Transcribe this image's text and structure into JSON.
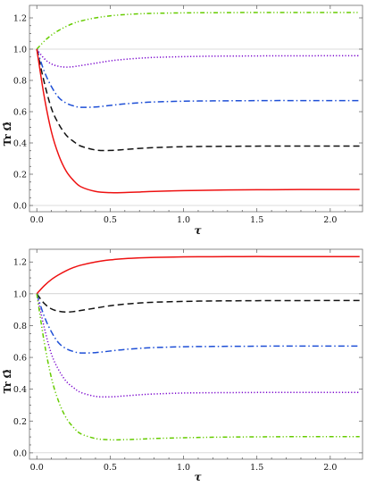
{
  "chart_data": [
    {
      "type": "line",
      "xlabel": "τ",
      "ylabel": "Tr Ω̂",
      "xlim": [
        -0.05,
        2.22
      ],
      "ylim": [
        -0.04,
        1.28
      ],
      "x_ticks": [
        0.0,
        0.5,
        1.0,
        1.5,
        2.0
      ],
      "x_tick_labels": [
        "0.0",
        "0.5",
        "1.0",
        "1.5",
        "2.0"
      ],
      "y_ticks": [
        0.0,
        0.2,
        0.4,
        0.6,
        0.8,
        1.0,
        1.2
      ],
      "y_tick_labels": [
        "0.0",
        "0.2",
        "0.4",
        "0.6",
        "0.8",
        "1.0",
        "1.2"
      ],
      "reference_lines_y": [
        0.0,
        1.0
      ],
      "x": [
        0.0,
        0.05,
        0.1,
        0.15,
        0.2,
        0.25,
        0.3,
        0.4,
        0.5,
        0.6,
        0.7,
        0.8,
        1.0,
        1.2,
        1.4,
        1.6,
        1.8,
        2.0,
        2.2
      ],
      "series": [
        {
          "color": "#66cc00",
          "style": "dash-dot-dot",
          "values": [
            1.0,
            1.05,
            1.09,
            1.12,
            1.145,
            1.165,
            1.18,
            1.2,
            1.213,
            1.221,
            1.226,
            1.229,
            1.232,
            1.233,
            1.234,
            1.234,
            1.234,
            1.234,
            1.234
          ]
        },
        {
          "color": "#7700cc",
          "style": "dotted",
          "values": [
            1.0,
            0.94,
            0.905,
            0.89,
            0.885,
            0.888,
            0.895,
            0.91,
            0.925,
            0.935,
            0.942,
            0.947,
            0.952,
            0.955,
            0.956,
            0.957,
            0.957,
            0.958,
            0.958
          ]
        },
        {
          "color": "#1e4fd6",
          "style": "dash-dot",
          "values": [
            1.0,
            0.86,
            0.76,
            0.69,
            0.655,
            0.637,
            0.628,
            0.63,
            0.64,
            0.65,
            0.657,
            0.662,
            0.667,
            0.669,
            0.67,
            0.671,
            0.671,
            0.671,
            0.671
          ]
        },
        {
          "color": "#111111",
          "style": "dashed",
          "values": [
            1.0,
            0.79,
            0.62,
            0.52,
            0.45,
            0.41,
            0.38,
            0.355,
            0.352,
            0.358,
            0.365,
            0.37,
            0.376,
            0.378,
            0.379,
            0.38,
            0.38,
            0.38,
            0.38
          ]
        },
        {
          "color": "#ee1111",
          "style": "solid",
          "values": [
            1.0,
            0.7,
            0.47,
            0.32,
            0.22,
            0.16,
            0.12,
            0.09,
            0.082,
            0.083,
            0.086,
            0.09,
            0.095,
            0.098,
            0.1,
            0.101,
            0.102,
            0.102,
            0.102
          ]
        }
      ]
    },
    {
      "type": "line",
      "xlabel": "τ",
      "ylabel": "Tr Ω̂",
      "xlim": [
        -0.05,
        2.22
      ],
      "ylim": [
        -0.04,
        1.28
      ],
      "x_ticks": [
        0.0,
        0.5,
        1.0,
        1.5,
        2.0
      ],
      "x_tick_labels": [
        "0.0",
        "0.5",
        "1.0",
        "1.5",
        "2.0"
      ],
      "y_ticks": [
        0.0,
        0.2,
        0.4,
        0.6,
        0.8,
        1.0,
        1.2
      ],
      "y_tick_labels": [
        "0.0",
        "0.2",
        "0.4",
        "0.6",
        "0.8",
        "1.0",
        "1.2"
      ],
      "reference_lines_y": [
        0.0,
        1.0
      ],
      "x": [
        0.0,
        0.05,
        0.1,
        0.15,
        0.2,
        0.25,
        0.3,
        0.4,
        0.5,
        0.6,
        0.7,
        0.8,
        1.0,
        1.2,
        1.4,
        1.6,
        1.8,
        2.0,
        2.2
      ],
      "series": [
        {
          "color": "#ee1111",
          "style": "solid",
          "values": [
            1.0,
            1.05,
            1.09,
            1.12,
            1.145,
            1.165,
            1.18,
            1.2,
            1.213,
            1.221,
            1.226,
            1.229,
            1.232,
            1.233,
            1.234,
            1.234,
            1.234,
            1.234,
            1.234
          ]
        },
        {
          "color": "#111111",
          "style": "dashed",
          "values": [
            1.0,
            0.94,
            0.905,
            0.89,
            0.885,
            0.888,
            0.895,
            0.91,
            0.925,
            0.935,
            0.942,
            0.947,
            0.952,
            0.955,
            0.956,
            0.957,
            0.957,
            0.958,
            0.958
          ]
        },
        {
          "color": "#1e4fd6",
          "style": "dash-dot",
          "values": [
            1.0,
            0.86,
            0.76,
            0.69,
            0.655,
            0.637,
            0.628,
            0.63,
            0.64,
            0.65,
            0.657,
            0.662,
            0.667,
            0.669,
            0.67,
            0.671,
            0.671,
            0.671,
            0.671
          ]
        },
        {
          "color": "#7700cc",
          "style": "dotted",
          "values": [
            1.0,
            0.79,
            0.62,
            0.52,
            0.45,
            0.41,
            0.38,
            0.355,
            0.352,
            0.358,
            0.365,
            0.37,
            0.376,
            0.378,
            0.379,
            0.38,
            0.38,
            0.38,
            0.38
          ]
        },
        {
          "color": "#66cc00",
          "style": "dash-dot-dot",
          "values": [
            1.0,
            0.7,
            0.47,
            0.32,
            0.22,
            0.16,
            0.12,
            0.09,
            0.082,
            0.083,
            0.086,
            0.09,
            0.095,
            0.098,
            0.1,
            0.101,
            0.102,
            0.102,
            0.102
          ]
        }
      ]
    }
  ]
}
